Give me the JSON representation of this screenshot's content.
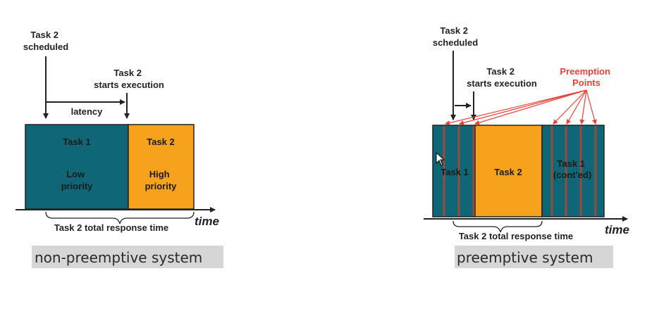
{
  "colors": {
    "task1": "#0f6677",
    "task2": "#f7a21d",
    "preemption": "#e8413a",
    "stripe": "#9a4a3a",
    "caption_bg": "#d6d6d6"
  },
  "left": {
    "task2_scheduled": [
      "Task 2",
      "scheduled"
    ],
    "task2_starts": [
      "Task 2",
      "starts execution"
    ],
    "latency": "latency",
    "task1_label": "Task 1",
    "task1_priority": [
      "Low",
      "priority"
    ],
    "task2_label": "Task 2",
    "task2_priority": [
      "High",
      "priority"
    ],
    "response_time": "Task 2 total response time",
    "time": "time",
    "caption": "non-preemptive system"
  },
  "right": {
    "task2_scheduled": [
      "Task 2",
      "scheduled"
    ],
    "task2_starts": [
      "Task 2",
      "starts execution"
    ],
    "preemption_points": [
      "Preemption",
      "Points"
    ],
    "task1_label": "Task 1",
    "task2_label": "Task 2",
    "task1_contd": [
      "Task 1",
      "(cont'ed)"
    ],
    "response_time": "Task 2 total response time",
    "time": "time",
    "caption": "preemptive system"
  }
}
